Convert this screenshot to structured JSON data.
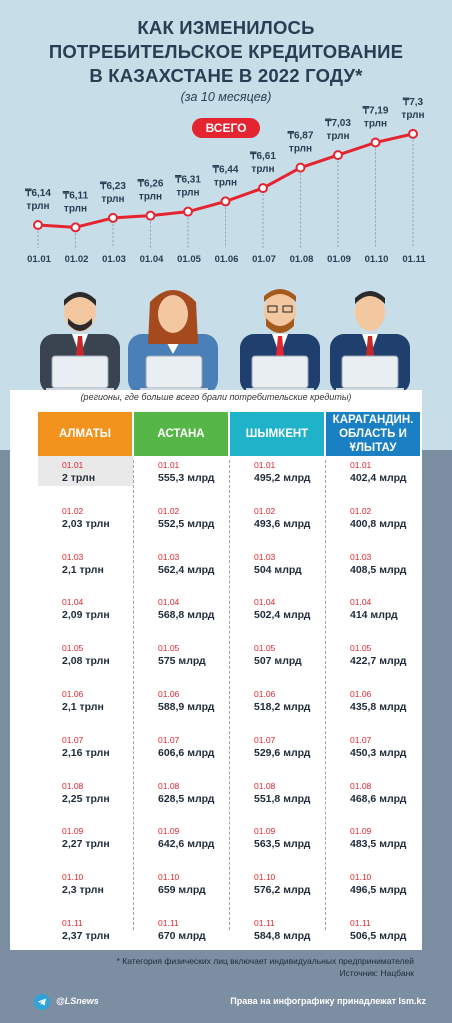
{
  "header": {
    "title_lines": [
      "КАК ИЗМЕНИЛОСЬ",
      "ПОТРЕБИТЕЛЬСКОЕ КРЕДИТОВАНИЕ",
      "В КАЗАХСТАНЕ В 2022 ГОДУ*"
    ],
    "subtitle": "(за 10 месяцев)",
    "total_badge": "ВСЕГО"
  },
  "colors": {
    "accent_red": "#e4242f",
    "almaty": "#f2931e",
    "astana": "#56b647",
    "shymkent": "#1fb2c9",
    "karaganda": "#1a7fc3"
  },
  "chart_data": [
    {
      "type": "line",
      "x": [
        "01.01",
        "01.02",
        "01.03",
        "01.04",
        "01.05",
        "01.06",
        "01.07",
        "01.08",
        "01.09",
        "01.10",
        "01.11"
      ],
      "series": [
        {
          "values": [
            6.14,
            6.11,
            6.23,
            6.26,
            6.31,
            6.44,
            6.61,
            6.87,
            7.03,
            7.19,
            7.3
          ],
          "labels": [
            "₸6,14",
            "₸6,11",
            "₸6,23",
            "₸6,26",
            "₸6,31",
            "₸6,44",
            "₸6,61",
            "₸6,87",
            "₸7,03",
            "₸7,19",
            "₸7,3"
          ],
          "unit": "трлн"
        }
      ]
    },
    {
      "type": "table",
      "note": "(регионы, где больше всего брали потребительские кредиты)",
      "columns": [
        "АЛМАТЫ",
        "АСТАНА",
        "ШЫМКЕНТ",
        "КАРАГАНДИН. ОБЛАСТЬ И ҰЛЫТАУ"
      ],
      "dates": [
        "01.01",
        "01.02",
        "01.03",
        "01.04",
        "01.05",
        "01.06",
        "01.07",
        "01.08",
        "01.09",
        "01.10",
        "01.11"
      ],
      "values": [
        [
          "2 трлн",
          "2,03 трлн",
          "2,1 трлн",
          "2,09 трлн",
          "2,08 трлн",
          "2,1 трлн",
          "2,16 трлн",
          "2,25 трлн",
          "2,27 трлн",
          "2,3 трлн",
          "2,37 трлн"
        ],
        [
          "555,3 млрд",
          "552,5 млрд",
          "562,4 млрд",
          "568,8 млрд",
          "575 млрд",
          "588,9 млрд",
          "606,6 млрд",
          "628,5 млрд",
          "642,6 млрд",
          "659 млрд",
          "670 млрд"
        ],
        [
          "495,2 млрд",
          "493,6 млрд",
          "504 млрд",
          "502,4 млрд",
          "507 млрд",
          "518,2 млрд",
          "529,6 млрд",
          "551,8 млрд",
          "563,5 млрд",
          "576,2 млрд",
          "584,8 млрд"
        ],
        [
          "402,4 млрд",
          "400,8 млрд",
          "408,5 млрд",
          "414 млрд",
          "422,7 млрд",
          "435,8 млрд",
          "450,3 млрд",
          "468,6 млрд",
          "483,5 млрд",
          "496,5 млрд",
          "506,5 млрд"
        ]
      ]
    }
  ],
  "footnote": {
    "line1": "* Категория физических лиц включает индивидуальных предпринимателей",
    "line2": "Источник: Нацбанк"
  },
  "footer": {
    "icon": "telegram-icon",
    "handle": "@LSnews",
    "rights": "Права на инфографику принадлежат lsm.kz"
  }
}
